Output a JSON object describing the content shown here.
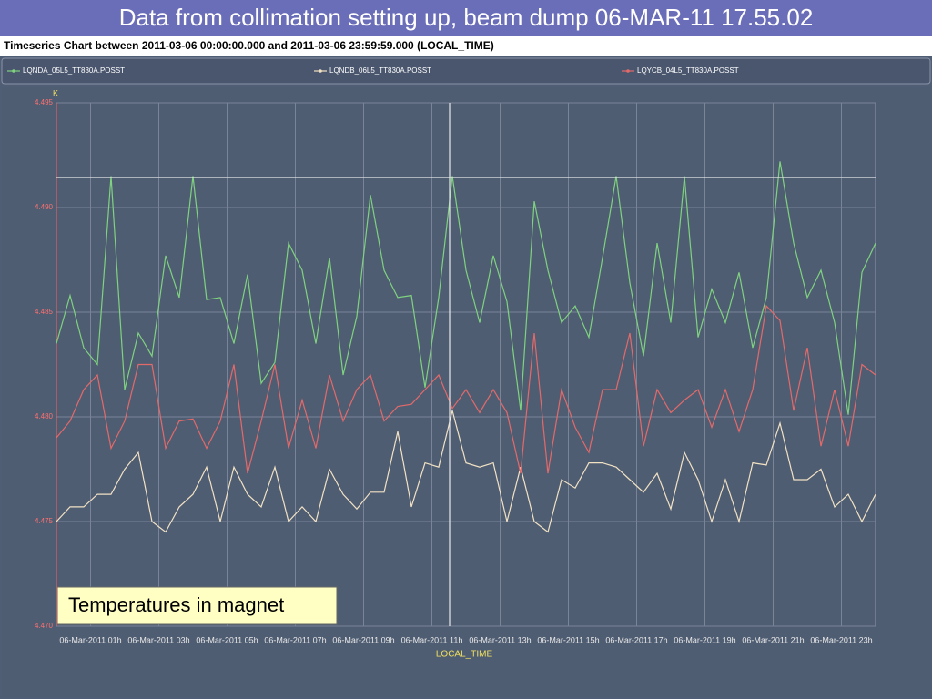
{
  "slide_title": "Data from collimation setting up, beam dump 06-MAR-11 17.55.02",
  "chart_data": {
    "type": "line",
    "title": "Timeseries Chart between 2011-03-06 00:00:00.000 and 2011-03-06 23:59:59.000 (LOCAL_TIME)",
    "y_label": "K",
    "x_label": "LOCAL_TIME",
    "annotation": "Temperatures in magnet",
    "x": [
      0,
      0.4,
      0.8,
      1.2,
      1.6,
      2,
      2.4,
      2.8,
      3.2,
      3.6,
      4,
      4.4,
      4.8,
      5.2,
      5.6,
      6,
      6.4,
      6.8,
      7.2,
      7.6,
      8,
      8.4,
      8.8,
      9.2,
      9.6,
      10,
      10.4,
      10.8,
      11.2,
      11.6,
      12,
      12.4,
      12.8,
      13.2,
      13.6,
      14,
      14.4,
      14.8,
      15.2,
      15.6,
      16,
      16.4,
      16.8,
      17.2,
      17.6,
      18,
      18.4,
      18.8,
      19.2,
      19.6,
      20,
      20.4,
      20.8,
      21.2,
      21.6,
      22,
      22.4,
      22.8,
      23.2,
      23.6,
      24
    ],
    "series": [
      {
        "name": "LQNDA_05L5_TT830A.POSST",
        "color": "#7fd27f",
        "values": [
          4.4835,
          4.4858,
          4.4833,
          4.4825,
          4.4915,
          4.4813,
          4.484,
          4.4829,
          4.4877,
          4.4857,
          4.4915,
          4.4856,
          4.4857,
          4.4835,
          4.4868,
          4.4816,
          4.4826,
          4.4883,
          4.487,
          4.4835,
          4.4876,
          4.482,
          4.4848,
          4.4906,
          4.487,
          4.4857,
          4.4858,
          4.4814,
          4.4857,
          4.4915,
          4.487,
          4.4845,
          4.4877,
          4.4855,
          4.4803,
          4.4903,
          4.487,
          4.4845,
          4.4853,
          4.4838,
          4.4876,
          4.4915,
          4.4864,
          4.4829,
          4.4883,
          4.4845,
          4.4915,
          4.4838,
          4.4861,
          4.4845,
          4.4869,
          4.4833,
          4.4857,
          4.4922,
          4.4883,
          4.4857,
          4.487,
          4.4845,
          4.4801,
          4.4869,
          4.4883
        ]
      },
      {
        "name": "LQNDB_06L5_TT830A.POSST",
        "color": "#f2e2c4",
        "values": [
          4.475,
          4.4757,
          4.4757,
          4.4763,
          4.4763,
          4.4775,
          4.4783,
          4.475,
          4.4745,
          4.4757,
          4.4763,
          4.4776,
          4.475,
          4.4776,
          4.4763,
          4.4757,
          4.4776,
          4.475,
          4.4757,
          4.475,
          4.4775,
          4.4763,
          4.4756,
          4.4764,
          4.4764,
          4.4793,
          4.4757,
          4.4778,
          4.4776,
          4.4803,
          4.4778,
          4.4776,
          4.4778,
          4.475,
          4.4776,
          4.475,
          4.4745,
          4.477,
          4.4766,
          4.4778,
          4.4778,
          4.4776,
          4.477,
          4.4764,
          4.4773,
          4.4756,
          4.4783,
          4.477,
          4.475,
          4.477,
          4.475,
          4.4778,
          4.4777,
          4.4797,
          4.477,
          4.477,
          4.4775,
          4.4757,
          4.4763,
          4.475,
          4.4763
        ]
      },
      {
        "name": "LQYCB_04L5_TT830A.POSST",
        "color": "#e36a6a",
        "values": [
          4.479,
          4.4798,
          4.4813,
          4.482,
          4.4785,
          4.4798,
          4.4825,
          4.4825,
          4.4785,
          4.4798,
          4.4799,
          4.4785,
          4.4798,
          4.4825,
          4.4773,
          4.4798,
          4.4825,
          4.4785,
          4.4808,
          4.4785,
          4.482,
          4.4798,
          4.4813,
          4.482,
          4.4798,
          4.4805,
          4.4806,
          4.4813,
          4.482,
          4.4804,
          4.4813,
          4.4802,
          4.4813,
          4.4802,
          4.4773,
          4.484,
          4.4773,
          4.4813,
          4.4795,
          4.4783,
          4.4813,
          4.4813,
          4.484,
          4.4786,
          4.4813,
          4.4802,
          4.4808,
          4.4813,
          4.4795,
          4.4813,
          4.4793,
          4.4813,
          4.4853,
          4.4846,
          4.4803,
          4.4833,
          4.4786,
          4.4813,
          4.4786,
          4.4825,
          4.482
        ]
      }
    ],
    "xlim": [
      0,
      24
    ],
    "xticks": [
      {
        "value": 1,
        "label": "06-Mar-2011 01h"
      },
      {
        "value": 3,
        "label": "06-Mar-2011 03h"
      },
      {
        "value": 5,
        "label": "06-Mar-2011 05h"
      },
      {
        "value": 7,
        "label": "06-Mar-2011 07h"
      },
      {
        "value": 9,
        "label": "06-Mar-2011 09h"
      },
      {
        "value": 11,
        "label": "06-Mar-2011 11h"
      },
      {
        "value": 13,
        "label": "06-Mar-2011 13h"
      },
      {
        "value": 15,
        "label": "06-Mar-2011 15h"
      },
      {
        "value": 17,
        "label": "06-Mar-2011 17h"
      },
      {
        "value": 19,
        "label": "06-Mar-2011 19h"
      },
      {
        "value": 21,
        "label": "06-Mar-2011 21h"
      },
      {
        "value": 23,
        "label": "06-Mar-2011 23h"
      }
    ],
    "ylim": [
      4.47,
      4.495
    ],
    "yticks": [
      {
        "value": 4.47,
        "label": "4.470"
      },
      4.475,
      {
        "value": 4.48,
        "label": "4.480"
      },
      4.485,
      {
        "value": 4.49,
        "label": "4.490"
      },
      4.495
    ],
    "grid": true
  }
}
